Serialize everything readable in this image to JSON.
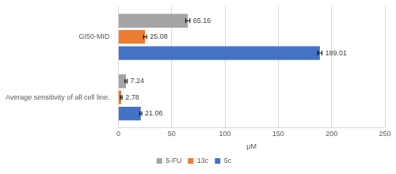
{
  "chart_data": {
    "type": "bar",
    "orientation": "horizontal",
    "categories": [
      "GI50-MID",
      "Average sensitivity of all cell line."
    ],
    "series": [
      {
        "name": "5-FU",
        "color": "#a5a5a5",
        "values": [
          65.16,
          7.24
        ],
        "errors": [
          2,
          1
        ]
      },
      {
        "name": "13c",
        "color": "#ed7d31",
        "values": [
          25.08,
          2.78
        ],
        "errors": [
          1.5,
          0.8
        ]
      },
      {
        "name": "5c",
        "color": "#4472c4",
        "values": [
          189.01,
          21.06
        ],
        "errors": [
          2,
          1
        ]
      }
    ],
    "xlabel": "μM",
    "xlim": [
      0,
      250
    ],
    "xticks": [
      0,
      50,
      100,
      150,
      200,
      250
    ],
    "grid": true,
    "legend": "bottom",
    "data_labels": true
  }
}
